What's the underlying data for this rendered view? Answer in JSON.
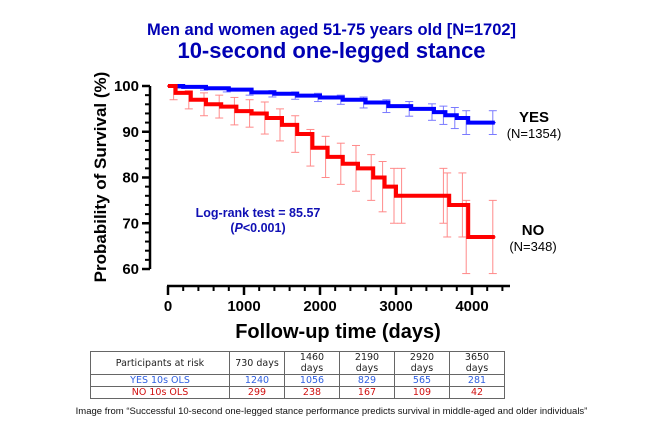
{
  "header": {
    "subtitle": "Men and women aged 51-75 years old [N=1702]",
    "title": "10-second one-legged stance"
  },
  "chart_data": {
    "type": "line",
    "subtitle": "Men and women aged 51-75 years old [N=1702]",
    "title": "10-second one-legged stance",
    "xlabel": "Follow-up time (days)",
    "ylabel": "Probability of Survival (%)",
    "xlim": [
      0,
      4500
    ],
    "ylim": [
      60,
      100
    ],
    "xticks": [
      "0",
      "1000",
      "2000",
      "3000",
      "4000"
    ],
    "yticks": [
      "60",
      "70",
      "80",
      "90",
      "100"
    ],
    "xtick_values": [
      0,
      1000,
      2000,
      3000,
      4000
    ],
    "ytick_values": [
      60,
      70,
      80,
      90,
      100
    ],
    "grid": false,
    "colors": {
      "yes": "#0000ff",
      "no": "#ff0000",
      "yes_err": "#7a7aff",
      "no_err": "#ff8a8a"
    },
    "series": [
      {
        "name": "YES",
        "label_n": "(N=1354)",
        "x": [
          0,
          200,
          500,
          800,
          1100,
          1400,
          1700,
          2000,
          2300,
          2600,
          2900,
          3200,
          3500,
          3650,
          3800,
          3950,
          4300
        ],
        "y": [
          100,
          99.8,
          99.5,
          99.2,
          98.6,
          98.3,
          97.9,
          97.5,
          97.0,
          96.4,
          95.6,
          95.0,
          94.3,
          93.6,
          93.0,
          92.0,
          92.0
        ],
        "err": [
          0.2,
          0.3,
          0.4,
          0.5,
          0.6,
          0.7,
          0.8,
          0.9,
          1.0,
          1.2,
          1.4,
          1.6,
          1.8,
          2.0,
          2.3,
          2.6,
          2.6
        ]
      },
      {
        "name": "NO",
        "label_n": "(N=348)",
        "x": [
          0,
          100,
          300,
          500,
          700,
          900,
          1100,
          1300,
          1500,
          1700,
          1900,
          2100,
          2300,
          2500,
          2700,
          2850,
          3000,
          3100,
          3650,
          3700,
          3900,
          3950,
          4300
        ],
        "y": [
          100,
          98.5,
          97,
          96,
          95.5,
          94.5,
          94,
          93,
          91.5,
          89.5,
          86.5,
          84.5,
          83,
          82,
          80,
          78,
          76,
          76,
          76,
          74,
          74,
          67,
          67
        ],
        "err": [
          0.5,
          1.5,
          2,
          2.5,
          2.5,
          3,
          3,
          3.5,
          3.5,
          4,
          4,
          4.5,
          4.5,
          5,
          5,
          5.5,
          6,
          6,
          6,
          7,
          7,
          8,
          8
        ]
      }
    ],
    "annotation": {
      "line1": "Log-rank test = 85.57",
      "line2_italic": "P",
      "line2_rest": "<0.001)",
      "line2_open": "("
    }
  },
  "risk_table": {
    "header": [
      "Participants at risk",
      "730 days",
      "1460 days",
      "2190 days",
      "2920 days",
      "3650 days"
    ],
    "rows": [
      {
        "label": "YES 10s OLS",
        "values": [
          "1240",
          "1056",
          "829",
          "565",
          "281"
        ]
      },
      {
        "label": "NO 10s OLS",
        "values": [
          "299",
          "238",
          "167",
          "109",
          "42"
        ]
      }
    ]
  },
  "caption": "Image from “Successful 10-second one-legged stance performance predicts survival in middle-aged and older individuals”"
}
